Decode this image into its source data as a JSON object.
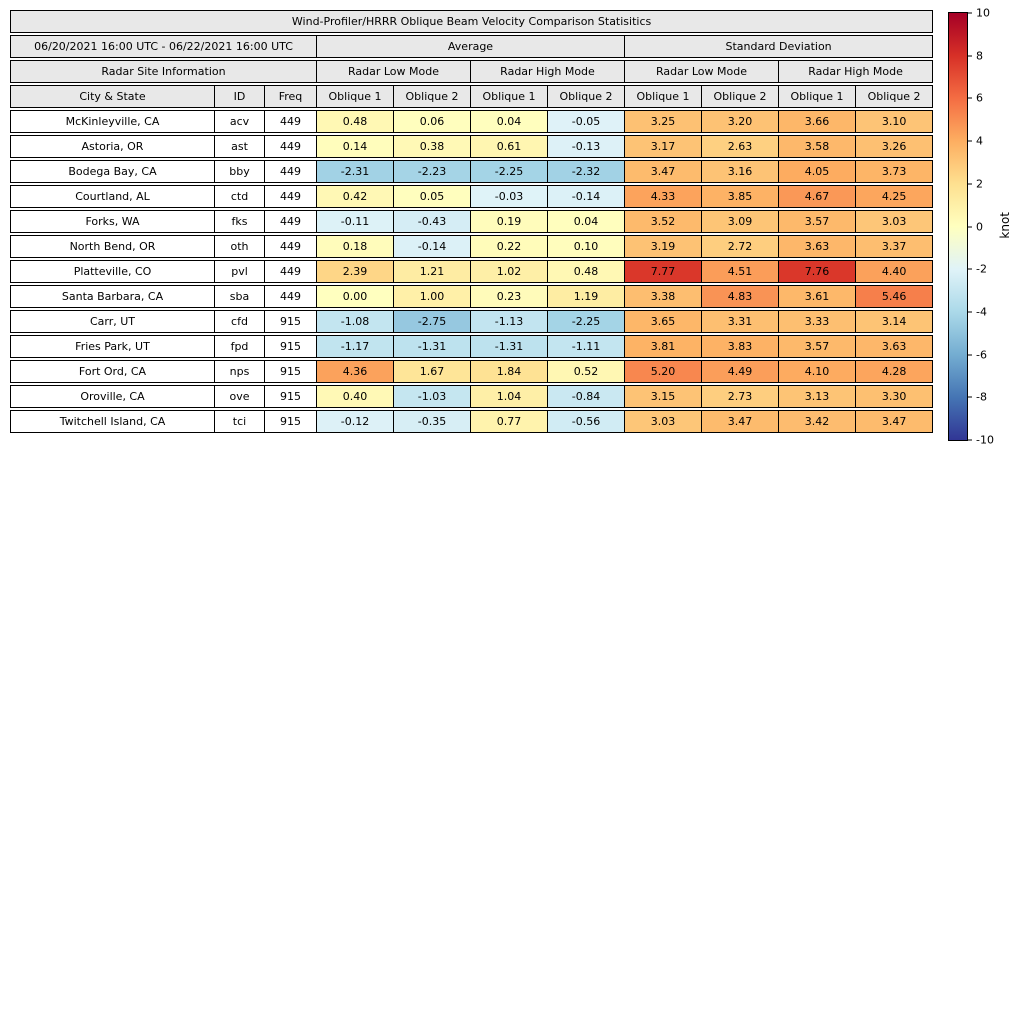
{
  "chart_data": {
    "type": "table",
    "title": "Wind-Profiler/HRRR Oblique Beam Velocity Comparison Statisitics",
    "header": {
      "date_range": "06/20/2021 16:00 UTC - 06/22/2021 16:00 UTC",
      "group_labels": [
        "Average",
        "Standard Deviation"
      ],
      "site_info_label": "Radar Site Information",
      "mode_labels": [
        "Radar Low Mode",
        "Radar High Mode",
        "Radar Low Mode",
        "Radar High Mode"
      ],
      "column_labels": [
        "City & State",
        "ID",
        "Freq",
        "Oblique 1",
        "Oblique 2",
        "Oblique 1",
        "Oblique 2",
        "Oblique 1",
        "Oblique 2",
        "Oblique 1",
        "Oblique 2"
      ]
    },
    "rows": [
      {
        "city": "McKinleyville, CA",
        "id": "acv",
        "freq": 449,
        "values": [
          0.48,
          0.06,
          0.04,
          -0.05,
          3.25,
          3.2,
          3.66,
          3.1
        ]
      },
      {
        "city": "Astoria, OR",
        "id": "ast",
        "freq": 449,
        "values": [
          0.14,
          0.38,
          0.61,
          -0.13,
          3.17,
          2.63,
          3.58,
          3.26
        ]
      },
      {
        "city": "Bodega Bay, CA",
        "id": "bby",
        "freq": 449,
        "values": [
          -2.31,
          -2.23,
          -2.25,
          -2.32,
          3.47,
          3.16,
          4.05,
          3.73
        ]
      },
      {
        "city": "Courtland, AL",
        "id": "ctd",
        "freq": 449,
        "values": [
          0.42,
          0.05,
          -0.03,
          -0.14,
          4.33,
          3.85,
          4.67,
          4.25
        ]
      },
      {
        "city": "Forks, WA",
        "id": "fks",
        "freq": 449,
        "values": [
          -0.11,
          -0.43,
          0.19,
          0.04,
          3.52,
          3.09,
          3.57,
          3.03
        ]
      },
      {
        "city": "North Bend, OR",
        "id": "oth",
        "freq": 449,
        "values": [
          0.18,
          -0.14,
          0.22,
          0.1,
          3.19,
          2.72,
          3.63,
          3.37
        ]
      },
      {
        "city": "Platteville, CO",
        "id": "pvl",
        "freq": 449,
        "values": [
          2.39,
          1.21,
          1.02,
          0.48,
          7.77,
          4.51,
          7.76,
          4.4
        ]
      },
      {
        "city": "Santa Barbara, CA",
        "id": "sba",
        "freq": 449,
        "values": [
          0.0,
          1.0,
          0.23,
          1.19,
          3.38,
          4.83,
          3.61,
          5.46
        ]
      },
      {
        "city": "Carr, UT",
        "id": "cfd",
        "freq": 915,
        "values": [
          -1.08,
          -2.75,
          -1.13,
          -2.25,
          3.65,
          3.31,
          3.33,
          3.14
        ]
      },
      {
        "city": "Fries Park, UT",
        "id": "fpd",
        "freq": 915,
        "values": [
          -1.17,
          -1.31,
          -1.31,
          -1.11,
          3.81,
          3.83,
          3.57,
          3.63
        ]
      },
      {
        "city": "Fort Ord, CA",
        "id": "nps",
        "freq": 915,
        "values": [
          4.36,
          1.67,
          1.84,
          0.52,
          5.2,
          4.49,
          4.1,
          4.28
        ]
      },
      {
        "city": "Oroville, CA",
        "id": "ove",
        "freq": 915,
        "values": [
          0.4,
          -1.03,
          1.04,
          -0.84,
          3.15,
          2.73,
          3.13,
          3.3
        ]
      },
      {
        "city": "Twitchell Island, CA",
        "id": "tci",
        "freq": 915,
        "values": [
          -0.12,
          -0.35,
          0.77,
          -0.56,
          3.03,
          3.47,
          3.42,
          3.47
        ]
      }
    ],
    "value_decimals": 2,
    "colorbar": {
      "label": "knot",
      "min": -10,
      "max": 10,
      "ticks": [
        10,
        8,
        6,
        4,
        2,
        0,
        -2,
        -4,
        -6,
        -8,
        -10
      ],
      "colors_low_to_high": [
        "#313695",
        "#4575b4",
        "#74add1",
        "#abd9e9",
        "#e0f3f8",
        "#ffffbf",
        "#fee090",
        "#fdae61",
        "#f46d43",
        "#d73027",
        "#a50026"
      ]
    },
    "colors": {
      "header_bg": "#e8e8e8",
      "border": "#000000",
      "background": "#ffffff"
    }
  }
}
